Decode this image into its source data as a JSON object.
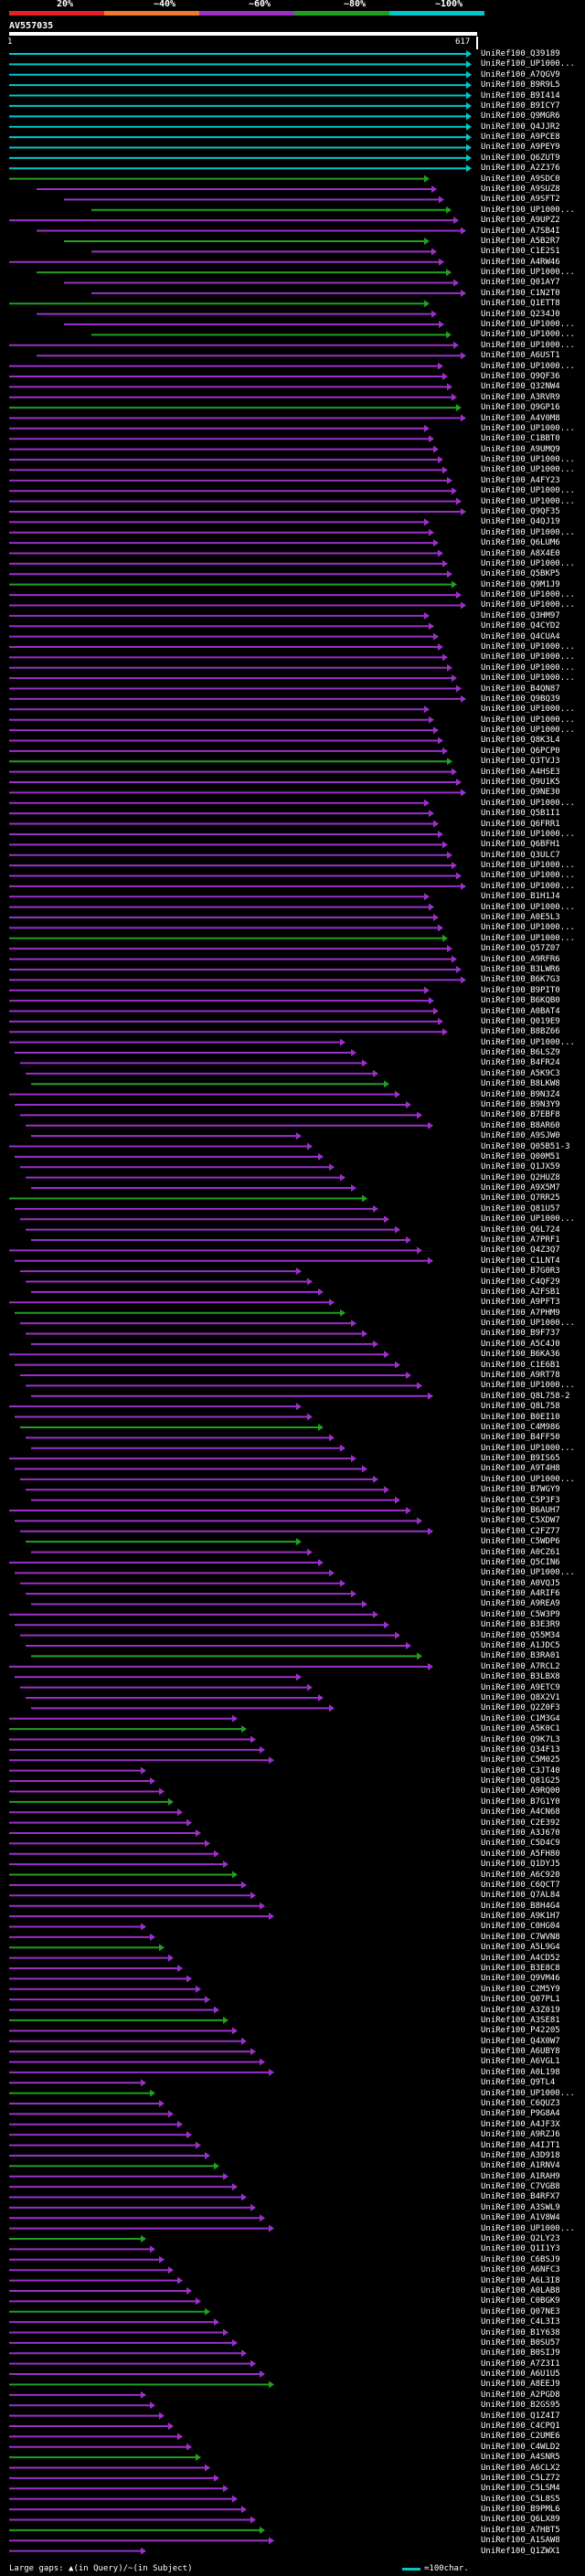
{
  "legend": {
    "labels": [
      "20%",
      "~40%",
      "~60%",
      "~80%",
      "~100%"
    ],
    "colors": [
      "#e8202a",
      "#f07830",
      "#9b30c8",
      "#20a020",
      "#00c8c8"
    ]
  },
  "query": {
    "id": "AV557035",
    "start": "1",
    "end": "617"
  },
  "hits": [
    "UniRef100_Q39189",
    "UniRef100_UP1000...",
    "UniRef100_A7QGV9",
    "UniRef100_B9R9L5",
    "UniRef100_B9I414",
    "UniRef100_B9ICY7",
    "UniRef100_Q9MGR6",
    "UniRef100_Q4JJR2",
    "UniRef100_A9PCE8",
    "UniRef100_A9PEY9",
    "UniRef100_Q6ZUT9",
    "UniRef100_A2Z376",
    "UniRef100_A9SDC0",
    "UniRef100_A9SUZ8",
    "UniRef100_A9SFT2",
    "UniRef100_UP1000...",
    "UniRef100_A9UPZ2",
    "UniRef100_A7SB4I",
    "UniRef100_A5B2R7",
    "UniRef100_C1E2S1",
    "UniRef100_A4RW46",
    "UniRef100_UP1000...",
    "UniRef100_Q01AY7",
    "UniRef100_C1N2T0",
    "UniRef100_Q1ETT8",
    "UniRef100_Q234J0",
    "UniRef100_UP1000...",
    "UniRef100_UP1000...",
    "UniRef100_UP1000...",
    "UniRef100_A6UST1",
    "UniRef100_UP1000...",
    "UniRef100_Q9QF36",
    "UniRef100_Q32NW4",
    "UniRef100_A3RVR9",
    "UniRef100_Q9GP16",
    "UniRef100_A4V0M8",
    "UniRef100_UP1000...",
    "UniRef100_C1BBT0",
    "UniRef100_A9UMQ9",
    "UniRef100_UP1000...",
    "UniRef100_UP1000...",
    "UniRef100_A4FY23",
    "UniRef100_UP1000...",
    "UniRef100_UP1000...",
    "UniRef100_Q9QF35",
    "UniRef100_Q4QJ19",
    "UniRef100_UP1000...",
    "UniRef100_Q6LUM6",
    "UniRef100_A8X4E0",
    "UniRef100_UP1000...",
    "UniRef100_Q5BKP5",
    "UniRef100_Q9M1J9",
    "UniRef100_UP1000...",
    "UniRef100_UP1000...",
    "UniRef100_Q3HM97",
    "UniRef100_Q4CYD2",
    "UniRef100_Q4CUA4",
    "UniRef100_UP1000...",
    "UniRef100_UP1000...",
    "UniRef100_UP1000...",
    "UniRef100_UP1000...",
    "UniRef100_B4QN87",
    "UniRef100_Q9BQ39",
    "UniRef100_UP1000...",
    "UniRef100_UP1000...",
    "UniRef100_UP1000...",
    "UniRef100_Q8K3L4",
    "UniRef100_Q6PCP0",
    "UniRef100_Q3TVJ3",
    "UniRef100_A4HSE3",
    "UniRef100_Q9U1K5",
    "UniRef100_Q9NE30",
    "UniRef100_UP1000...",
    "UniRef100_Q5B1I1",
    "UniRef100_Q6FRR1",
    "UniRef100_UP1000...",
    "UniRef100_Q6BFH1",
    "UniRef100_Q3ULC7",
    "UniRef100_UP1000...",
    "UniRef100_UP1000...",
    "UniRef100_UP1000...",
    "UniRef100_B1H1J4",
    "UniRef100_UP1000...",
    "UniRef100_A0E5L3",
    "UniRef100_UP1000...",
    "UniRef100_UP1000...",
    "UniRef100_Q57Z07",
    "UniRef100_A9RFR6",
    "UniRef100_B3LWR6",
    "UniRef100_B6K7G3",
    "UniRef100_B9PIT0",
    "UniRef100_B6KQB0",
    "UniRef100_A0BAT4",
    "UniRef100_Q019E9",
    "UniRef100_B8BZ66",
    "UniRef100_UP1000...",
    "UniRef100_B6LSZ9",
    "UniRef100_B4FR24",
    "UniRef100_A5K9C3",
    "UniRef100_B8LKW8",
    "UniRef100_B9N3Z4",
    "UniRef100_B9N3Y9",
    "UniRef100_B7EBF8",
    "UniRef100_B8AR60",
    "UniRef100_A9SJW0",
    "UniRef100_Q05B51-3",
    "UniRef100_Q00M51",
    "UniRef100_Q1JX59",
    "UniRef100_Q2HUZ8",
    "UniRef100_A9X5M7",
    "UniRef100_Q7RR25",
    "UniRef100_Q81U57",
    "UniRef100_UP1000...",
    "UniRef100_Q6L724",
    "UniRef100_A7PRF1",
    "UniRef100_Q4Z3Q7",
    "UniRef100_C1LNT4",
    "UniRef100_B7G0R3",
    "UniRef100_C4QF29",
    "UniRef100_A2FSB1",
    "UniRef100_A9PFT3",
    "UniRef100_A7PHM9",
    "UniRef100_UP1000...",
    "UniRef100_B9F737",
    "UniRef100_A5C4J0",
    "UniRef100_B6KA36",
    "UniRef100_C1E6B1",
    "UniRef100_A9RT78",
    "UniRef100_UP1000...",
    "UniRef100_Q8L758-2",
    "UniRef100_Q8L758",
    "UniRef100_B0EI10",
    "UniRef100_C4M986",
    "UniRef100_B4FF50",
    "UniRef100_UP1000...",
    "UniRef100_B9IS65",
    "UniRef100_A9T4H8",
    "UniRef100_UP1000...",
    "UniRef100_B7WGY9",
    "UniRef100_C5P3F3",
    "UniRef100_B6AUH7",
    "UniRef100_C5XDW7",
    "UniRef100_C2FZ77",
    "UniRef100_C5WDP6",
    "UniRef100_A0CZ61",
    "UniRef100_Q5CIN6",
    "UniRef100_UP1000...",
    "UniRef100_A0VQJ5",
    "UniRef100_A4RIF6",
    "UniRef100_A9REA9",
    "UniRef100_C5W3P9",
    "UniRef100_B3E3R9",
    "UniRef100_Q55M34",
    "UniRef100_A1JDC5",
    "UniRef100_B3RA01",
    "UniRef100_A7RCL2",
    "UniRef100_B3LBX8",
    "UniRef100_A9ETC9",
    "UniRef100_Q8X2V1",
    "UniRef100_Q2Z0F3",
    "UniRef100_C1M3G4",
    "UniRef100_A5K0C1",
    "UniRef100_Q9K7L3",
    "UniRef100_Q34F13",
    "UniRef100_C5M025",
    "UniRef100_C3JT40",
    "UniRef100_Q81G25",
    "UniRef100_A9RQ00",
    "UniRef100_B7G1Y0",
    "UniRef100_A4CN68",
    "UniRef100_C2E392",
    "UniRef100_A3J670",
    "UniRef100_C5D4C9",
    "UniRef100_A5FH80",
    "UniRef100_Q1DYJ5",
    "UniRef100_A6C920",
    "UniRef100_C6QCT7",
    "UniRef100_Q7AL84",
    "UniRef100_B8H4G4",
    "UniRef100_A9K1H7",
    "UniRef100_C0HG04",
    "UniRef100_C7WVN8",
    "UniRef100_A5L9G4",
    "UniRef100_A4CD52",
    "UniRef100_B3E8C8",
    "UniRef100_Q9VM46",
    "UniRef100_C2M5Y9",
    "UniRef100_Q07PL1",
    "UniRef100_A3Z019",
    "UniRef100_A3SE81",
    "UniRef100_P42205",
    "UniRef100_Q4X0W7",
    "UniRef100_A6UBY8",
    "UniRef100_A6VGL1",
    "UniRef100_A0L198",
    "UniRef100_Q9TL4",
    "UniRef100_UP1000...",
    "UniRef100_C6QUZ3",
    "UniRef100_P9G8A4",
    "UniRef100_A4JF3X",
    "UniRef100_A9RZJ6",
    "UniRef100_A4IJT1",
    "UniRef100_A3D918",
    "UniRef100_A1RNV4",
    "UniRef100_A1RAH9",
    "UniRef100_C7VGB8",
    "UniRef100_B4RFX7",
    "UniRef100_A3SWL9",
    "UniRef100_A1V8W4",
    "UniRef100_UP1000...",
    "UniRef100_Q2LY23",
    "UniRef100_Q1I1Y3",
    "UniRef100_C6BSJ9",
    "UniRef100_A6NFC3",
    "UniRef100_A6L3I8",
    "UniRef100_A0LAB8",
    "UniRef100_C0BGK9",
    "UniRef100_Q07NE3",
    "UniRef100_C4L3I3",
    "UniRef100_B1Y638",
    "UniRef100_B0SU57",
    "UniRef100_B0SIJ9",
    "UniRef100_A7Z3I1",
    "UniRef100_A6U1U5",
    "UniRef100_A8EEJ9",
    "UniRef100_A2PGD8",
    "UniRef100_B2GS95",
    "UniRef100_Q1Z4I7",
    "UniRef100_C4CPQ1",
    "UniRef100_C2UME6",
    "UniRef100_C4WLD2",
    "UniRef100_A4SNR5",
    "UniRef100_A6CLX2",
    "UniRef100_C5LZ72",
    "UniRef100_C5LSM4",
    "UniRef100_C5L8S5",
    "UniRef100_B9PML6",
    "UniRef100_Q6LX89",
    "UniRef100_A7HBT5",
    "UniRef100_A1SAW8",
    "UniRef100_Q1ZWX1"
  ],
  "footer": {
    "text": "Large gaps: ▲(in Query)/~(in Subject)",
    "scale": "=100char."
  }
}
